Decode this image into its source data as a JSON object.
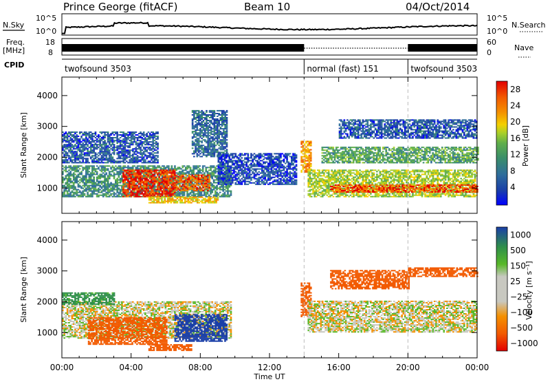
{
  "header": {
    "station": "Prince George (fitACF)",
    "beam": "Beam 10",
    "date": "04/Oct/2014"
  },
  "top_panels": {
    "nsky_label": "N.Sky",
    "nsky_top": "10^5",
    "nsky_bottom": "10^0",
    "nsearch_label": "N.Search",
    "nsearch_top": "10^5",
    "nsearch_bottom": "10^0",
    "freq_label": "Freq.",
    "freq_unit": "[MHz]",
    "freq_top": "18",
    "freq_bottom": "8",
    "nave_label": "Nave",
    "nave_top": "60",
    "nave_bottom": "0",
    "cpid_label": "CPID",
    "cpid_segments": [
      {
        "name": "twofsound 3503",
        "start_hour": 0,
        "end_hour": 14
      },
      {
        "name": "normal (fast) 151",
        "start_hour": 14,
        "end_hour": 20
      },
      {
        "name": "twofsound 3503",
        "start_hour": 20,
        "end_hour": 24
      }
    ]
  },
  "chart_data": [
    {
      "type": "heatmap",
      "title": "Power",
      "xlabel": "",
      "ylabel": "Slant Range [km]",
      "xlim": [
        0,
        24
      ],
      "ylim": [
        180,
        4600
      ],
      "yticks": [
        1000,
        2000,
        3000,
        4000
      ],
      "colorbar_label": "Power [dB]",
      "colorbar_ticks": [
        "28",
        "24",
        "20",
        "16",
        "12",
        "8",
        "4"
      ],
      "colorbar_range": [
        0,
        30
      ],
      "colorbar_colors": [
        "#0000ff",
        "#1a3fa8",
        "#2f6e9a",
        "#3a8e6a",
        "#5fae4a",
        "#a8cf2a",
        "#f4d000",
        "#f49000",
        "#f25a00",
        "#e30000"
      ],
      "regions": [
        {
          "t0": 0.0,
          "t1": 9.8,
          "r0": 700,
          "r1": 1700,
          "level": 10
        },
        {
          "t0": 0.0,
          "t1": 5.5,
          "r0": 1800,
          "r1": 2800,
          "level": 6
        },
        {
          "t0": 3.5,
          "t1": 6.5,
          "r0": 700,
          "r1": 1600,
          "level": 27
        },
        {
          "t0": 6.5,
          "t1": 8.5,
          "r0": 900,
          "r1": 1400,
          "level": 25
        },
        {
          "t0": 5.0,
          "t1": 9.0,
          "r0": 500,
          "r1": 700,
          "level": 20
        },
        {
          "t0": 7.5,
          "t1": 9.5,
          "r0": 2000,
          "r1": 3500,
          "level": 7
        },
        {
          "t0": 9.0,
          "t1": 13.5,
          "r0": 1100,
          "r1": 2100,
          "level": 5
        },
        {
          "t0": 13.8,
          "t1": 14.4,
          "r0": 1500,
          "r1": 2500,
          "level": 22
        },
        {
          "t0": 14.2,
          "t1": 24.0,
          "r0": 700,
          "r1": 1600,
          "level": 16
        },
        {
          "t0": 15.5,
          "t1": 24.0,
          "r0": 850,
          "r1": 1100,
          "level": 26
        },
        {
          "t0": 15.0,
          "t1": 24.0,
          "r0": 1800,
          "r1": 2300,
          "level": 12
        },
        {
          "t0": 16.0,
          "t1": 24.0,
          "r0": 2600,
          "r1": 3200,
          "level": 6
        }
      ]
    },
    {
      "type": "heatmap",
      "title": "Velocity",
      "xlabel": "Time UT",
      "ylabel": "Slant Range [km]",
      "xlim": [
        0,
        24
      ],
      "ylim": [
        180,
        4600
      ],
      "xticks": [
        "00:00",
        "04:00",
        "08:00",
        "12:00",
        "16:00",
        "20:00",
        "00:00"
      ],
      "yticks": [
        1000,
        2000,
        3000,
        4000
      ],
      "colorbar_label": "Velocity [m s⁻¹]",
      "colorbar_ticks": [
        "1000",
        "500",
        "150",
        "25",
        "−25",
        "−100",
        "−500",
        "−1000"
      ],
      "colorbar_range": [
        -1200,
        1200
      ],
      "colorbar_colors": [
        "#e30000",
        "#f25a00",
        "#f49000",
        "#c8c8c0",
        "#c8c8c0",
        "#58b828",
        "#2f8f4a",
        "#1a3fa8"
      ],
      "regions": [
        {
          "t0": 0.0,
          "t1": 9.8,
          "r0": 800,
          "r1": 2000,
          "v": 0
        },
        {
          "t0": 1.5,
          "t1": 6.0,
          "r0": 600,
          "r1": 1500,
          "v": -400
        },
        {
          "t0": 5.0,
          "t1": 7.5,
          "r0": 400,
          "r1": 600,
          "v": -350
        },
        {
          "t0": 6.5,
          "t1": 9.5,
          "r0": 700,
          "r1": 1600,
          "v": 600
        },
        {
          "t0": 0.0,
          "t1": 3.0,
          "r0": 1900,
          "r1": 2300,
          "v": 200
        },
        {
          "t0": 13.8,
          "t1": 14.4,
          "r0": 1500,
          "r1": 2600,
          "v": -300
        },
        {
          "t0": 14.2,
          "t1": 24.0,
          "r0": 1000,
          "r1": 2000,
          "v": 0
        },
        {
          "t0": 15.5,
          "t1": 20.0,
          "r0": 2400,
          "r1": 3000,
          "v": -250
        },
        {
          "t0": 20.0,
          "t1": 24.0,
          "r0": 2800,
          "r1": 3100,
          "v": -300
        }
      ]
    }
  ]
}
